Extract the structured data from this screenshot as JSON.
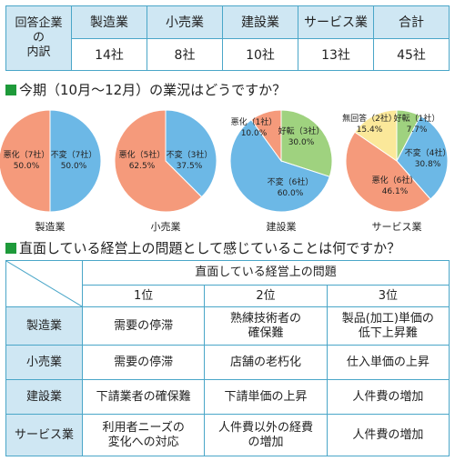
{
  "summary": {
    "row_label": [
      "回答企業",
      "の",
      "内訳"
    ],
    "headers": [
      "製造業",
      "小売業",
      "建設業",
      "サービス業",
      "合計"
    ],
    "values": [
      "14社",
      "8社",
      "10社",
      "13社",
      "45社"
    ]
  },
  "section1_title": "今期（10月～12月）の業況はどうですか？",
  "section2_title": "直面している経営上の問題として感じていることは何ですか？",
  "chart_data": [
    {
      "type": "pie",
      "title": "製造業",
      "slices": [
        {
          "label": "不変（7社）",
          "percent": "50.0%",
          "value": 50.0,
          "color": "#6cb8e6"
        },
        {
          "label": "悪化（7社）",
          "percent": "50.0%",
          "value": 50.0,
          "color": "#f59a7b"
        }
      ]
    },
    {
      "type": "pie",
      "title": "小売業",
      "slices": [
        {
          "label": "不変（3社）",
          "percent": "37.5%",
          "value": 37.5,
          "color": "#6cb8e6"
        },
        {
          "label": "悪化（5社）",
          "percent": "62.5%",
          "value": 62.5,
          "color": "#f59a7b"
        }
      ]
    },
    {
      "type": "pie",
      "title": "建設業",
      "slices": [
        {
          "label": "好転（3社）",
          "percent": "30.0%",
          "value": 30.0,
          "color": "#9fd27f"
        },
        {
          "label": "不変（6社）",
          "percent": "60.0%",
          "value": 60.0,
          "color": "#6cb8e6"
        },
        {
          "label": "悪化（1社）",
          "percent": "10.0%",
          "value": 10.0,
          "color": "#f59a7b"
        }
      ]
    },
    {
      "type": "pie",
      "title": "サービス業",
      "slices": [
        {
          "label": "好転（1社）",
          "percent": "7.7%",
          "value": 7.7,
          "color": "#9fd27f"
        },
        {
          "label": "不変（4社）",
          "percent": "30.8%",
          "value": 30.8,
          "color": "#6cb8e6"
        },
        {
          "label": "悪化（6社）",
          "percent": "46.1%",
          "value": 46.1,
          "color": "#f59a7b"
        },
        {
          "label": "無回答（2社）",
          "percent": "15.4%",
          "value": 15.4,
          "color": "#fbe89a"
        }
      ]
    }
  ],
  "problems": {
    "group_header": "直面している経営上の問題",
    "rank_headers": [
      "1位",
      "2位",
      "3位"
    ],
    "rows": [
      {
        "industry": "製造業",
        "cells": [
          "需要の停滞",
          "熟練技術者の\n確保難",
          "製品(加工)単価の\n低下上昇難"
        ]
      },
      {
        "industry": "小売業",
        "cells": [
          "需要の停滞",
          "店舗の老朽化",
          "仕入単価の上昇"
        ]
      },
      {
        "industry": "建設業",
        "cells": [
          "下請業者の確保難",
          "下請単価の上昇",
          "人件費の増加"
        ]
      },
      {
        "industry": "サービス業",
        "cells": [
          "利用者ニーズの\n変化への対応",
          "人件費以外の経費\nの増加",
          "人件費の増加"
        ]
      }
    ]
  }
}
